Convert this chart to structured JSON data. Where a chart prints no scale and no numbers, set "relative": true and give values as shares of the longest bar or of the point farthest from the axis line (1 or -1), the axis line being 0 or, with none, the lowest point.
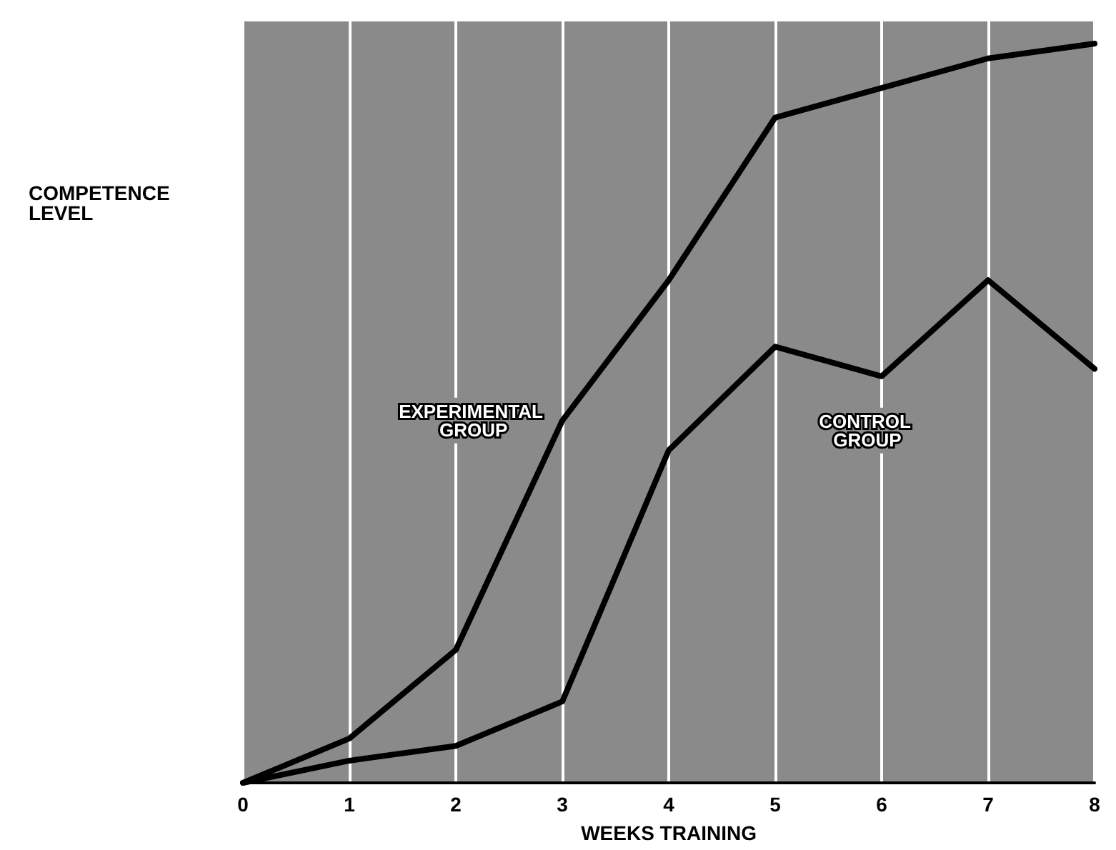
{
  "chart_data": {
    "type": "line",
    "xlabel": "WEEKS TRAINING",
    "ylabel": "COMPETENCE LEVEL",
    "relative": true,
    "x": [
      0,
      1,
      2,
      3,
      4,
      5,
      6,
      7,
      8
    ],
    "xlim": [
      0,
      8
    ],
    "xticks": [
      0,
      1,
      2,
      3,
      4,
      5,
      6,
      7,
      8
    ],
    "grid": "x",
    "marker": "none",
    "line_style": "solid",
    "legend": false,
    "series": [
      {
        "name": "EXPERIMENTAL GROUP",
        "color": "#000000",
        "values": [
          0,
          0.06,
          0.18,
          0.49,
          0.68,
          0.9,
          0.94,
          0.98,
          1
        ]
      },
      {
        "name": "CONTROL GROUP",
        "color": "#000000",
        "values": [
          0,
          0.03,
          0.05,
          0.11,
          0.45,
          0.59,
          0.55,
          0.68,
          0.56
        ]
      }
    ]
  }
}
